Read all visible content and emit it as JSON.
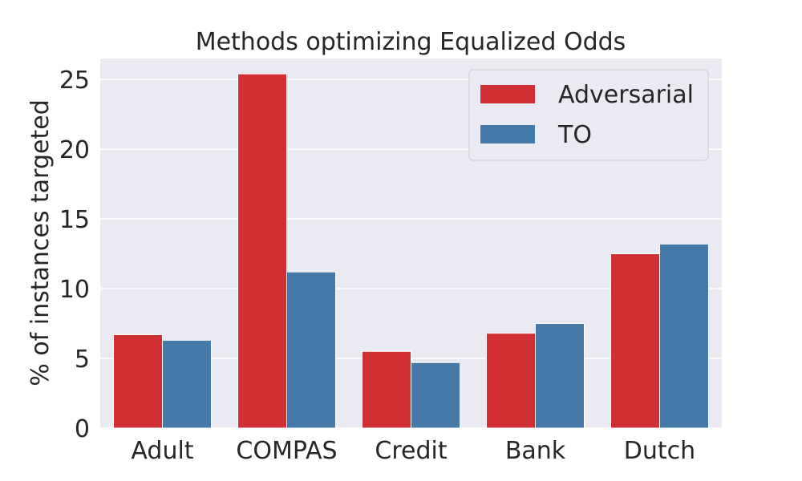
{
  "chart_data": {
    "type": "bar",
    "title": "Methods optimizing Equalized Odds",
    "xlabel": "",
    "ylabel": "% of instances targeted",
    "categories": [
      "Adult",
      "COMPAS",
      "Credit",
      "Bank",
      "Dutch"
    ],
    "series": [
      {
        "name": "Adversarial",
        "color": "#d03034",
        "values": [
          6.7,
          25.4,
          5.5,
          6.8,
          12.5
        ]
      },
      {
        "name": "TO",
        "color": "#4579a8",
        "values": [
          6.3,
          11.2,
          4.7,
          7.5,
          13.2
        ]
      }
    ],
    "ylim": [
      0,
      26.5
    ],
    "yticks": [
      "0",
      "5",
      "10",
      "15",
      "20",
      "25"
    ],
    "grid": true,
    "legend": "top-right",
    "plot_background": "#eaeaf2"
  }
}
